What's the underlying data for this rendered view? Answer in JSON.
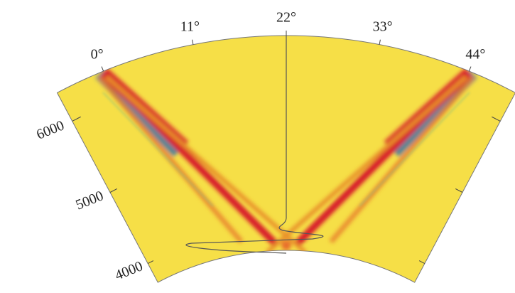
{
  "chart_data": {
    "type": "polar-sector",
    "thetalim": [
      -6,
      50
    ],
    "thetaticks": [
      {
        "value": 0,
        "label": "0°"
      },
      {
        "value": 11,
        "label": "11°"
      },
      {
        "value": 22,
        "label": "22°"
      },
      {
        "value": 33,
        "label": "33°"
      },
      {
        "value": 44,
        "label": "44°"
      }
    ],
    "rlim": [
      3735,
      6400
    ],
    "rticks": [
      4000,
      5000,
      6000
    ],
    "color": "#f6df47"
  }
}
